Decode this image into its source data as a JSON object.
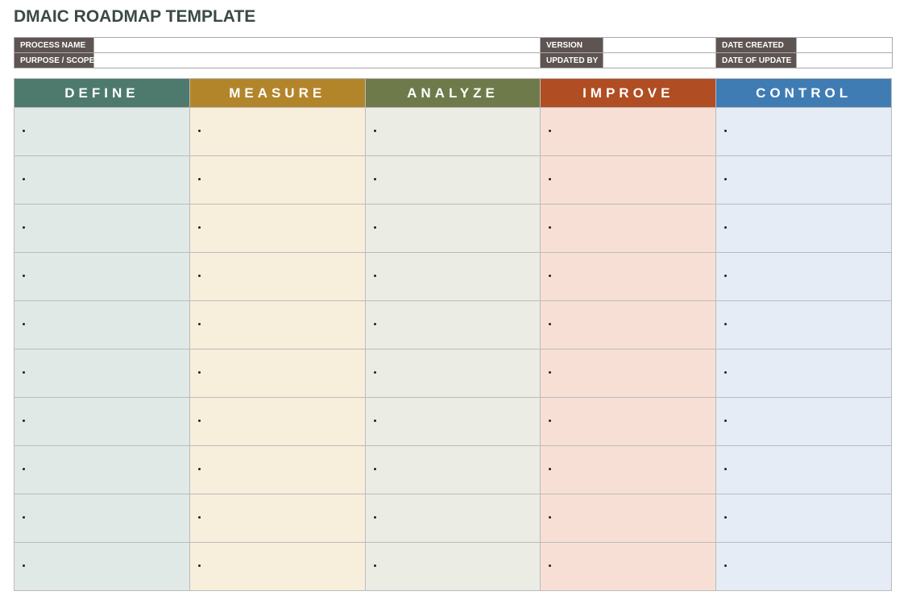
{
  "header": {
    "title": "DMAIC ROADMAP TEMPLATE"
  },
  "info": {
    "rows": [
      [
        "PROCESS NAME",
        "VERSION",
        "DATE CREATED"
      ],
      [
        "PURPOSE / SCOPE",
        "UPDATED BY",
        "DATE OF UPDATE"
      ]
    ]
  },
  "table": {
    "columns": [
      "DEFINE",
      "MEASURE",
      "ANALYZE",
      "IMPROVE",
      "CONTROL"
    ]
  }
}
